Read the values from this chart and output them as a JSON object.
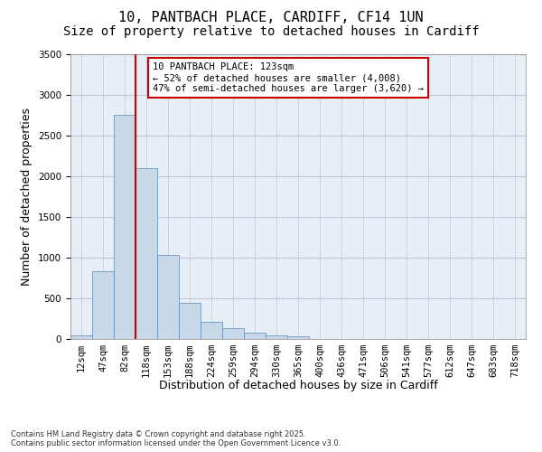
{
  "title_line1": "10, PANTBACH PLACE, CARDIFF, CF14 1UN",
  "title_line2": "Size of property relative to detached houses in Cardiff",
  "xlabel": "Distribution of detached houses by size in Cardiff",
  "ylabel": "Number of detached properties",
  "categories": [
    "12sqm",
    "47sqm",
    "82sqm",
    "118sqm",
    "153sqm",
    "188sqm",
    "224sqm",
    "259sqm",
    "294sqm",
    "330sqm",
    "365sqm",
    "400sqm",
    "436sqm",
    "471sqm",
    "506sqm",
    "541sqm",
    "577sqm",
    "612sqm",
    "647sqm",
    "683sqm",
    "718sqm"
  ],
  "values": [
    50,
    830,
    2750,
    2100,
    1030,
    450,
    210,
    135,
    75,
    50,
    30,
    0,
    0,
    0,
    0,
    0,
    0,
    0,
    0,
    0,
    0
  ],
  "bar_color": "#c8d8e8",
  "bar_edge_color": "#5a8ab0",
  "bar_edge_width": 0.5,
  "vline_index": 3,
  "vline_color": "#cc0000",
  "annotation_title": "10 PANTBACH PLACE: 123sqm",
  "annotation_line1": "← 52% of detached houses are smaller (4,008)",
  "annotation_line2": "47% of semi-detached houses are larger (3,620) →",
  "annotation_box_color": "#cc0000",
  "ylim": [
    0,
    3500
  ],
  "yticks": [
    0,
    500,
    1000,
    1500,
    2000,
    2500,
    3000,
    3500
  ],
  "grid_color": "#c0c8d8",
  "background_color": "#e8eef5",
  "footnote_line1": "Contains HM Land Registry data © Crown copyright and database right 2025.",
  "footnote_line2": "Contains public sector information licensed under the Open Government Licence v3.0.",
  "title_fontsize": 11,
  "subtitle_fontsize": 10,
  "tick_fontsize": 7.5,
  "ylabel_fontsize": 9,
  "xlabel_fontsize": 9,
  "annot_fontsize": 7.5,
  "footnote_fontsize": 6
}
